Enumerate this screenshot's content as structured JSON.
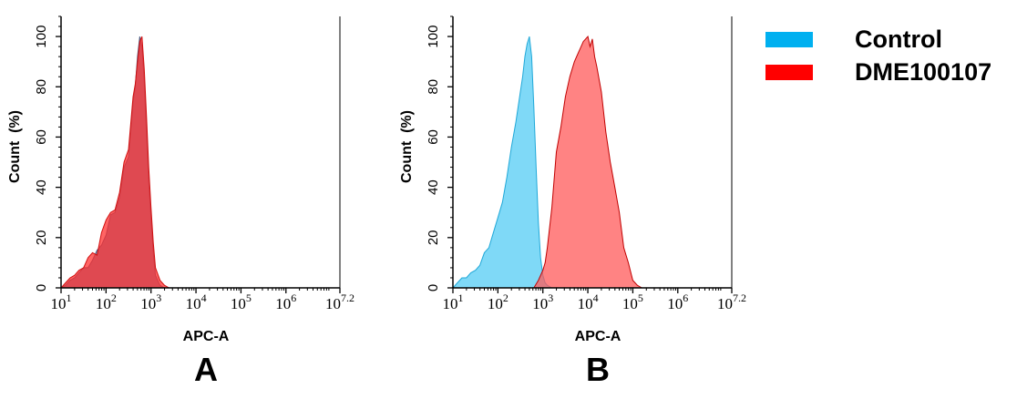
{
  "legend": [
    {
      "name": "Control",
      "color": "#00b0f0"
    },
    {
      "name": "DME100107",
      "color": "#ff0000"
    }
  ],
  "chart_data": [
    {
      "type": "area",
      "panel_label": "A",
      "xlabel": "APC-A",
      "ylabel": "Count  (%)",
      "x_scale": "log10",
      "xlim": [
        1,
        7.2
      ],
      "ylim": [
        0,
        108
      ],
      "x_tick_labels": [
        {
          "base": "10",
          "exp": "1"
        },
        {
          "base": "10",
          "exp": "2"
        },
        {
          "base": "10",
          "exp": "3"
        },
        {
          "base": "10",
          "exp": "4"
        },
        {
          "base": "10",
          "exp": "5"
        },
        {
          "base": "10",
          "exp": "6"
        },
        {
          "base": "10",
          "exp": "7.2"
        }
      ],
      "y_ticks": [
        0,
        20,
        40,
        60,
        80,
        100
      ],
      "series": [
        {
          "name": "Control",
          "fill": "#6a7fa8",
          "fill_opacity": 0.85,
          "stroke": "#4a5a80",
          "x": [
            1.0,
            1.1,
            1.2,
            1.3,
            1.4,
            1.5,
            1.6,
            1.7,
            1.8,
            1.9,
            2.0,
            2.1,
            2.2,
            2.3,
            2.4,
            2.5,
            2.6,
            2.65,
            2.7,
            2.75,
            2.8,
            2.85,
            2.9,
            2.95,
            3.0,
            3.05,
            3.1,
            3.2,
            3.3,
            3.4
          ],
          "y": [
            0,
            1,
            3,
            4,
            6,
            8,
            8,
            11,
            15,
            17,
            21,
            29,
            30,
            36,
            48,
            52,
            74,
            80,
            92,
            100,
            96,
            82,
            62,
            42,
            28,
            14,
            5,
            1,
            0,
            0
          ]
        },
        {
          "name": "DME100107",
          "fill": "#ff3030",
          "fill_opacity": 0.75,
          "stroke": "#d01010",
          "x": [
            1.0,
            1.1,
            1.2,
            1.3,
            1.4,
            1.5,
            1.6,
            1.7,
            1.8,
            1.9,
            2.0,
            2.1,
            2.2,
            2.3,
            2.4,
            2.5,
            2.6,
            2.65,
            2.7,
            2.75,
            2.8,
            2.85,
            2.9,
            2.95,
            3.0,
            3.05,
            3.1,
            3.2,
            3.3,
            3.4
          ],
          "y": [
            0,
            2,
            4,
            5,
            7,
            8,
            12,
            14,
            13,
            22,
            27,
            30,
            31,
            38,
            50,
            55,
            76,
            81,
            90,
            98,
            100,
            87,
            68,
            48,
            32,
            18,
            8,
            3,
            1,
            0
          ]
        }
      ]
    },
    {
      "type": "area",
      "panel_label": "B",
      "xlabel": "APC-A",
      "ylabel": "Count  (%)",
      "x_scale": "log10",
      "xlim": [
        1,
        7.2
      ],
      "ylim": [
        0,
        108
      ],
      "x_tick_labels": [
        {
          "base": "10",
          "exp": "1"
        },
        {
          "base": "10",
          "exp": "2"
        },
        {
          "base": "10",
          "exp": "3"
        },
        {
          "base": "10",
          "exp": "4"
        },
        {
          "base": "10",
          "exp": "5"
        },
        {
          "base": "10",
          "exp": "6"
        },
        {
          "base": "10",
          "exp": "7.2"
        }
      ],
      "y_ticks": [
        0,
        20,
        40,
        60,
        80,
        100
      ],
      "series": [
        {
          "name": "Control",
          "fill": "#5fd0f5",
          "fill_opacity": 0.8,
          "stroke": "#20a8d8",
          "x": [
            1.0,
            1.1,
            1.2,
            1.3,
            1.4,
            1.5,
            1.6,
            1.7,
            1.8,
            1.9,
            2.0,
            2.1,
            2.2,
            2.3,
            2.4,
            2.5,
            2.55,
            2.6,
            2.65,
            2.7,
            2.75,
            2.8,
            2.85,
            2.9,
            2.95,
            3.0,
            3.05,
            3.1,
            3.2
          ],
          "y": [
            0,
            2,
            4,
            4,
            6,
            7,
            9,
            14,
            16,
            22,
            28,
            34,
            44,
            56,
            66,
            78,
            84,
            92,
            97,
            100,
            92,
            72,
            48,
            26,
            12,
            5,
            2,
            1,
            0
          ]
        },
        {
          "name": "DME100107",
          "fill": "#ff5a5a",
          "fill_opacity": 0.75,
          "stroke": "#c00000",
          "x": [
            2.8,
            2.9,
            3.0,
            3.05,
            3.1,
            3.2,
            3.3,
            3.4,
            3.5,
            3.6,
            3.7,
            3.8,
            3.9,
            4.0,
            4.05,
            4.1,
            4.15,
            4.2,
            4.3,
            4.4,
            4.5,
            4.6,
            4.7,
            4.8,
            4.9,
            5.0,
            5.1,
            5.2
          ],
          "y": [
            0,
            3,
            7,
            10,
            16,
            32,
            54,
            64,
            76,
            84,
            90,
            94,
            98,
            100,
            96,
            99,
            92,
            88,
            78,
            62,
            50,
            40,
            30,
            16,
            10,
            3,
            1,
            0
          ]
        }
      ]
    }
  ]
}
